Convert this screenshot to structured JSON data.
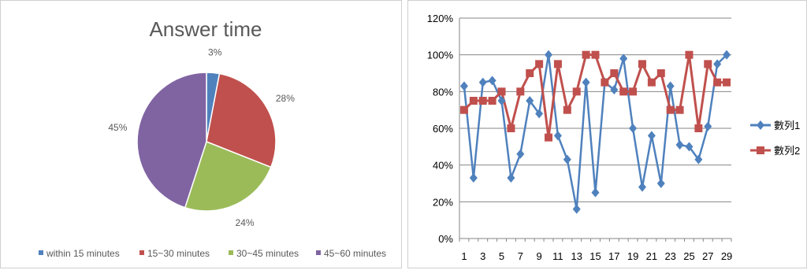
{
  "chart_data": [
    {
      "type": "pie",
      "title": "Answer time",
      "categories": [
        "within 15 minutes",
        "15~30 minutes",
        "30~45 minutes",
        "45~60 minutes"
      ],
      "values": [
        3,
        28,
        24,
        45
      ],
      "labels": [
        "3%",
        "28%",
        "24%",
        "45%"
      ],
      "colors": [
        "#4f81bd",
        "#c0504d",
        "#9bbb59",
        "#8064a2"
      ],
      "legend_position": "bottom"
    },
    {
      "type": "line",
      "title": "",
      "xlabel": "",
      "ylabel": "",
      "x": [
        1,
        2,
        3,
        4,
        5,
        6,
        7,
        8,
        9,
        10,
        11,
        12,
        13,
        14,
        15,
        16,
        17,
        18,
        19,
        20,
        21,
        22,
        23,
        24,
        25,
        26,
        27,
        28,
        29
      ],
      "x_tick_labels": [
        "1",
        "3",
        "5",
        "7",
        "9",
        "11",
        "13",
        "15",
        "17",
        "19",
        "21",
        "23",
        "25",
        "27",
        "29"
      ],
      "y_tick_labels": [
        "0%",
        "20%",
        "40%",
        "60%",
        "80%",
        "100%",
        "120%"
      ],
      "ylim": [
        0,
        1.2
      ],
      "grid": "horizontal",
      "legend_position": "right",
      "series": [
        {
          "name": "數列1",
          "color": "#4f81bd",
          "marker": "diamond",
          "values": [
            0.83,
            0.33,
            0.85,
            0.86,
            0.75,
            0.33,
            0.46,
            0.75,
            0.68,
            1.0,
            0.56,
            0.43,
            0.16,
            0.85,
            0.25,
            0.85,
            0.81,
            0.98,
            0.6,
            0.28,
            0.56,
            0.3,
            0.83,
            0.51,
            0.5,
            0.43,
            0.61,
            0.95,
            1.0
          ]
        },
        {
          "name": "數列2",
          "color": "#c0504d",
          "marker": "square",
          "values": [
            0.7,
            0.75,
            0.75,
            0.75,
            0.8,
            0.6,
            0.8,
            0.9,
            0.95,
            0.55,
            0.95,
            0.7,
            0.8,
            1.0,
            1.0,
            0.85,
            0.9,
            0.8,
            0.8,
            0.95,
            0.85,
            0.9,
            0.7,
            0.7,
            1.0,
            0.6,
            0.95,
            0.85,
            0.85
          ]
        }
      ]
    }
  ]
}
